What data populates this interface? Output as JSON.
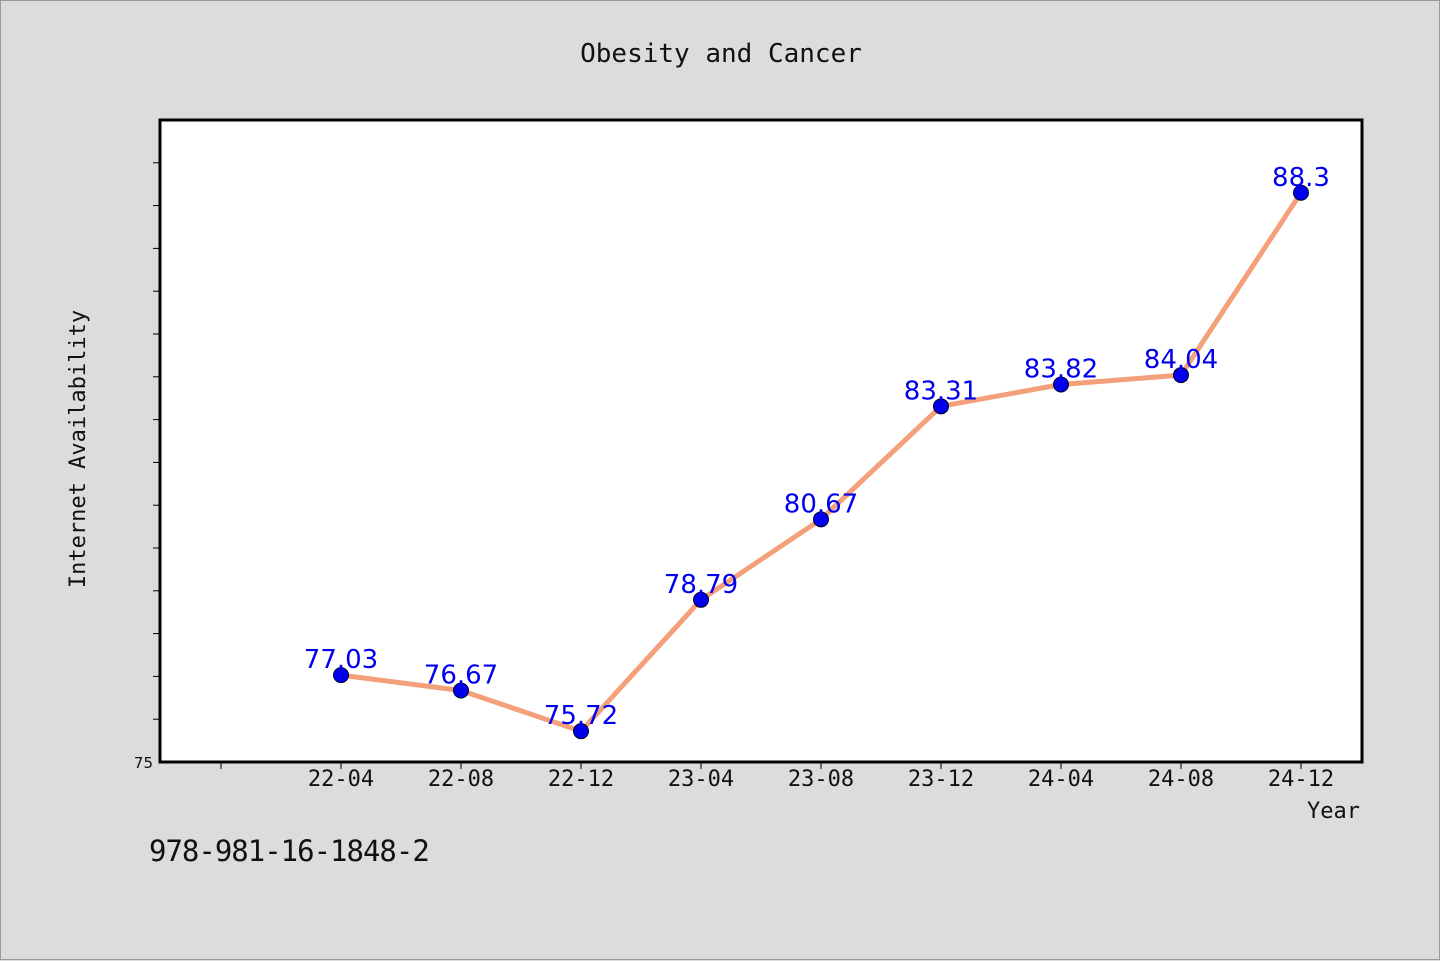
{
  "footer": {
    "code": "978-981-16-1848-2"
  },
  "colors": {
    "background": "#dcdcdc",
    "plot_background": "#ffffff",
    "line": "#f4a07a",
    "marker": "#0000ee",
    "data_label": "#0000ee",
    "axis": "#000000"
  },
  "chart_data": {
    "type": "line",
    "title": "Obesity and Cancer",
    "xlabel": "Year",
    "ylabel": "Internet Availability",
    "categories": [
      "22-04",
      "22-08",
      "22-12",
      "23-04",
      "23-08",
      "23-12",
      "24-04",
      "24-08",
      "24-12"
    ],
    "y_tick_labels": [
      {
        "value": 75,
        "label": "75"
      }
    ],
    "series": [
      {
        "values": [
          77.03,
          76.67,
          75.72,
          78.79,
          80.67,
          83.31,
          83.82,
          84.04,
          88.3
        ],
        "labels": [
          "77.03",
          "76.67",
          "75.72",
          "78.79",
          "80.67",
          "83.31",
          "83.82",
          "84.04",
          "88.3"
        ]
      }
    ],
    "ylim": [
      75,
      90
    ],
    "grid": false,
    "legend": "none"
  }
}
